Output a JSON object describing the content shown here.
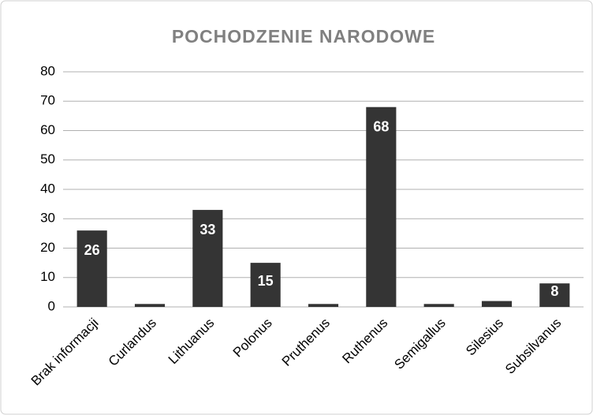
{
  "chart_data": {
    "type": "bar",
    "title": "POCHODZENIE NARODOWE",
    "categories": [
      "Brak informacji",
      "Curlandus",
      "Lithuanus",
      "Polonus",
      "Pruthenus",
      "Ruthenus",
      "Semigallus",
      "Silesius",
      "Subsilvanus"
    ],
    "values": [
      26,
      1,
      33,
      15,
      1,
      68,
      1,
      2,
      8
    ],
    "value_labels": [
      "26",
      null,
      "33",
      "15",
      null,
      "68",
      null,
      null,
      "8"
    ],
    "color": "#343434",
    "ylim": [
      0,
      80
    ],
    "yticks": [
      0,
      10,
      20,
      30,
      40,
      50,
      60,
      70,
      80
    ],
    "grid": true
  }
}
